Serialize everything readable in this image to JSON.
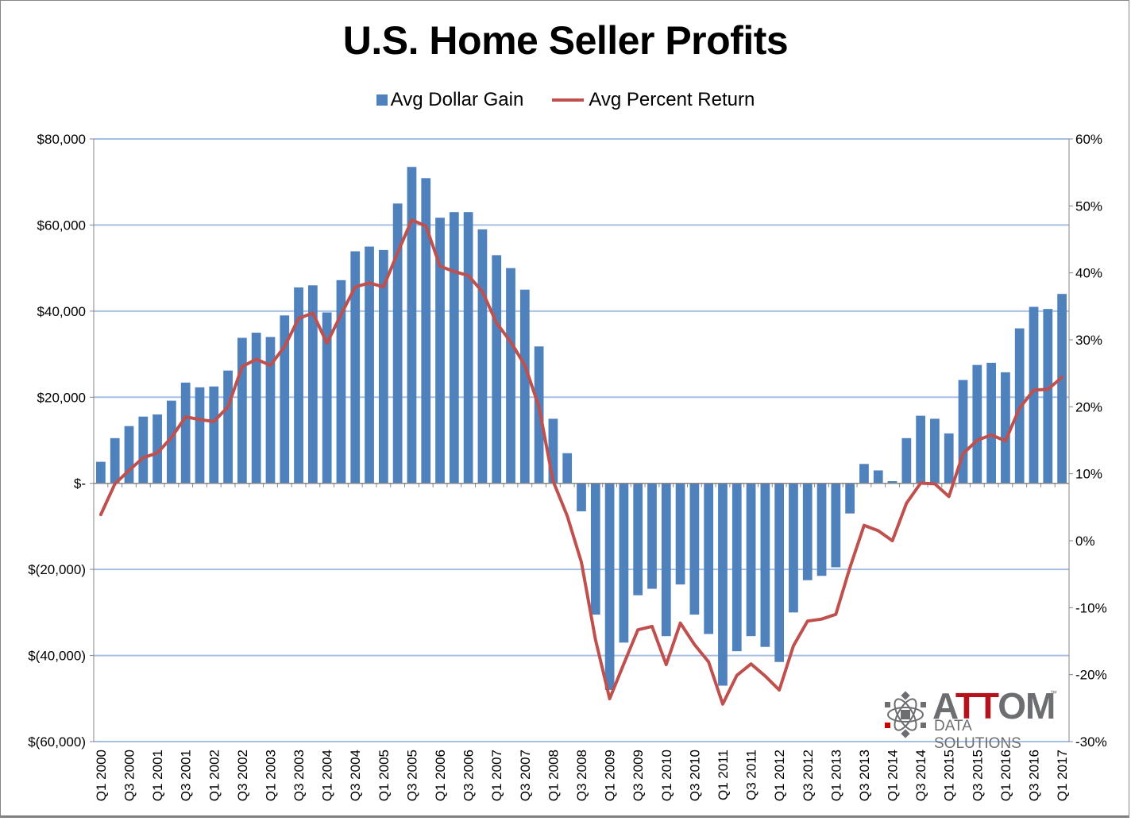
{
  "chart_data": {
    "type": "bar+line",
    "title": "U.S. Home Seller Profits",
    "legend": {
      "placement": "top",
      "entries": [
        "Avg Dollar Gain",
        "Avg Percent Return"
      ]
    },
    "colors": {
      "bars": "#4f81bd",
      "line": "#c0504d",
      "grid": "#a6bfe4"
    },
    "grid": true,
    "y_left": {
      "label": "",
      "range": [
        -60000,
        80000
      ],
      "ticks": [
        80000,
        60000,
        40000,
        20000,
        0,
        -20000,
        -40000,
        -60000
      ],
      "tick_labels": [
        "$80,000",
        "$60,000",
        "$40,000",
        "$20,000",
        "$-",
        "$(20,000)",
        "$(40,000)",
        "$(60,000)"
      ]
    },
    "y_right": {
      "label": "",
      "range": [
        -30,
        60
      ],
      "ticks": [
        60,
        50,
        40,
        30,
        20,
        10,
        0,
        -10,
        -20,
        -30
      ],
      "tick_labels": [
        "60%",
        "50%",
        "40%",
        "30%",
        "20%",
        "10%",
        "0%",
        "-10%",
        "-20%",
        "-30%"
      ]
    },
    "categories": [
      "Q1 2000",
      "Q2 2000",
      "Q3 2000",
      "Q4 2000",
      "Q1 2001",
      "Q2 2001",
      "Q3 2001",
      "Q4 2001",
      "Q1 2002",
      "Q2 2002",
      "Q3 2002",
      "Q4 2002",
      "Q1 2003",
      "Q2 2003",
      "Q3 2003",
      "Q4 2003",
      "Q1 2004",
      "Q2 2004",
      "Q3 2004",
      "Q4 2004",
      "Q1 2005",
      "Q2 2005",
      "Q3 2005",
      "Q4 2005",
      "Q1 2006",
      "Q2 2006",
      "Q3 2006",
      "Q4 2006",
      "Q1 2007",
      "Q2 2007",
      "Q3 2007",
      "Q4 2007",
      "Q1 2008",
      "Q2 2008",
      "Q3 2008",
      "Q4 2008",
      "Q1 2009",
      "Q2 2009",
      "Q3 2009",
      "Q4 2009",
      "Q1 2010",
      "Q2 2010",
      "Q3 2010",
      "Q4 2010",
      "Q1 2011",
      "Q2 2011",
      "Q3 2011",
      "Q4 2011",
      "Q1 2012",
      "Q2 2012",
      "Q3 2012",
      "Q4 2012",
      "Q1 2013",
      "Q2 2013",
      "Q3 2013",
      "Q4 2013",
      "Q1 2014",
      "Q2 2014",
      "Q3 2014",
      "Q4 2014",
      "Q1 2015",
      "Q2 2015",
      "Q3 2015",
      "Q4 2015",
      "Q1 2016",
      "Q2 2016",
      "Q3 2016",
      "Q4 2016",
      "Q1 2017"
    ],
    "x_tick_labels_shown": [
      "Q1 2000",
      "Q3 2000",
      "Q1 2001",
      "Q3 2001",
      "Q1 2002",
      "Q3 2002",
      "Q1 2003",
      "Q3 2003",
      "Q1 2004",
      "Q3 2004",
      "Q1 2005",
      "Q3 2005",
      "Q1 2006",
      "Q3 2006",
      "Q1 2007",
      "Q3 2007",
      "Q1 2008",
      "Q3 2008",
      "Q1 2009",
      "Q3 2009",
      "Q1 2010",
      "Q3 2010",
      "Q1 2011",
      "Q3 2011",
      "Q1 2012",
      "Q3 2012",
      "Q1 2013",
      "Q3 2013",
      "Q1 2014",
      "Q3 2014",
      "Q1 2015",
      "Q3 2015",
      "Q1 2016",
      "Q3 2016",
      "Q1 2017"
    ],
    "series": [
      {
        "name": "Avg Dollar Gain",
        "type": "bar",
        "axis": "left",
        "values": [
          5000,
          10500,
          13300,
          15500,
          16000,
          19200,
          23400,
          22300,
          22500,
          26200,
          33800,
          35000,
          34000,
          39000,
          45500,
          46000,
          39700,
          47200,
          53900,
          55000,
          54200,
          65000,
          73500,
          70900,
          61700,
          63000,
          63000,
          59000,
          53000,
          50000,
          45000,
          31800,
          15000,
          7000,
          -6500,
          -30500,
          -48000,
          -37000,
          -26000,
          -24500,
          -35500,
          -23500,
          -30500,
          -35000,
          -47000,
          -39000,
          -35500,
          -38000,
          -41500,
          -30000,
          -22500,
          -21500,
          -19500,
          -7000,
          4500,
          3000,
          500,
          10500,
          15700,
          15000,
          11600,
          24000,
          27500,
          28000,
          25800,
          36000,
          41000,
          40500,
          44000
        ]
      },
      {
        "name": "Avg Percent Return",
        "type": "line",
        "axis": "right",
        "values": [
          3.9,
          8.5,
          10.5,
          12.4,
          13.1,
          15.4,
          18.5,
          18.1,
          17.8,
          20.0,
          26.0,
          27.1,
          26.2,
          29.0,
          33.2,
          34.0,
          29.5,
          33.8,
          37.9,
          38.5,
          37.9,
          43.0,
          47.9,
          47.0,
          41.0,
          40.2,
          39.6,
          37.2,
          32.5,
          29.7,
          26.2,
          20.0,
          8.9,
          3.7,
          -3.2,
          -14.8,
          -23.6,
          -18.4,
          -13.3,
          -12.8,
          -18.5,
          -12.3,
          -15.5,
          -18.1,
          -24.4,
          -20.1,
          -18.4,
          -20.2,
          -22.3,
          -15.7,
          -12.0,
          -11.7,
          -11.0,
          -4.0,
          2.3,
          1.5,
          0.0,
          5.6,
          8.6,
          8.5,
          6.6,
          13.0,
          15.0,
          15.8,
          14.9,
          19.8,
          22.5,
          22.6,
          24.4
        ]
      }
    ]
  },
  "logo": {
    "brand_prefix": "A",
    "brand_red": "TT",
    "brand_suffix": "OM",
    "subtitle": "DATA SOLUTIONS",
    "tm": "™"
  }
}
